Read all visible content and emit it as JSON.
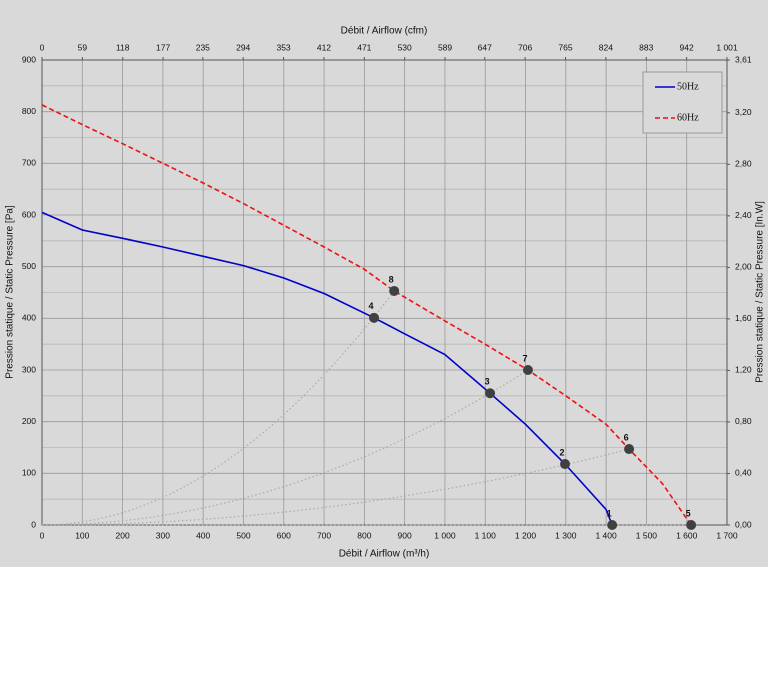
{
  "chart_data": {
    "type": "line",
    "x_label": "Débit / Airflow (m³/h)",
    "x2_label": "Débit / Airflow (cfm)",
    "y_label": "Pression statique / Static Pressure [Pa]",
    "y2_label": "Pression statique / Static Pressure [In.W]",
    "xlim": [
      0,
      1700
    ],
    "xticks": [
      0,
      100,
      200,
      300,
      400,
      500,
      600,
      700,
      800,
      900,
      {
        "value": 1000,
        "label": "1 000"
      },
      {
        "value": 1100,
        "label": "1 100"
      },
      {
        "value": 1200,
        "label": "1 200"
      },
      {
        "value": 1300,
        "label": "1 300"
      },
      {
        "value": 1400,
        "label": "1 400"
      },
      {
        "value": 1500,
        "label": "1 500"
      },
      {
        "value": 1600,
        "label": "1 600"
      },
      {
        "value": 1700,
        "label": "1 700"
      }
    ],
    "x2lim": [
      0,
      1001
    ],
    "x2ticks": [
      0,
      59,
      118,
      177,
      235,
      294,
      353,
      412,
      471,
      530,
      589,
      647,
      706,
      765,
      824,
      883,
      942,
      {
        "value": 1001,
        "label": "1 001"
      }
    ],
    "ylim": [
      0,
      900
    ],
    "yticks": [
      0,
      100,
      200,
      300,
      400,
      500,
      600,
      700,
      800,
      900
    ],
    "y2lim": [
      0,
      3.61
    ],
    "y2ticks": [
      {
        "value": 0,
        "label": "0,00"
      },
      {
        "value": 0.4,
        "label": "0,40"
      },
      {
        "value": 0.8,
        "label": "0,80"
      },
      {
        "value": 1.2,
        "label": "1,20"
      },
      {
        "value": 1.6,
        "label": "1,60"
      },
      {
        "value": 2.0,
        "label": "2,00"
      },
      {
        "value": 2.4,
        "label": "2,40"
      },
      {
        "value": 2.8,
        "label": "2,80"
      },
      {
        "value": 3.2,
        "label": "3,20"
      },
      {
        "value": 3.61,
        "label": "3,61"
      }
    ],
    "grid": true,
    "legend": "top-right",
    "series": [
      {
        "name": "50Hz",
        "color": "#0000cc",
        "dash": false,
        "x": [
          0,
          100,
          200,
          300,
          400,
          500,
          600,
          700,
          824,
          900,
          1000,
          1112,
          1200,
          1298,
          1400,
          1415
        ],
        "values": [
          605,
          571,
          555,
          538,
          520,
          502,
          478,
          448,
          401,
          370,
          330,
          255,
          195,
          118,
          30,
          0
        ]
      },
      {
        "name": "60Hz",
        "color": "#ee1111",
        "dash": true,
        "x": [
          0,
          100,
          200,
          300,
          400,
          500,
          600,
          700,
          800,
          874,
          1000,
          1100,
          1206,
          1300,
          1400,
          1457,
          1540,
          1611
        ],
        "values": [
          813,
          775,
          738,
          700,
          662,
          622,
          580,
          538,
          495,
          453,
          395,
          350,
          300,
          250,
          195,
          147,
          80,
          0
        ]
      }
    ],
    "points": [
      {
        "label": "1",
        "x": 1415,
        "y": 0
      },
      {
        "label": "2",
        "x": 1298,
        "y": 118
      },
      {
        "label": "3",
        "x": 1112,
        "y": 255
      },
      {
        "label": "4",
        "x": 824,
        "y": 401
      },
      {
        "label": "5",
        "x": 1611,
        "y": 0
      },
      {
        "label": "6",
        "x": 1457,
        "y": 147
      },
      {
        "label": "7",
        "x": 1206,
        "y": 300
      },
      {
        "label": "8",
        "x": 874,
        "y": 453
      }
    ]
  }
}
